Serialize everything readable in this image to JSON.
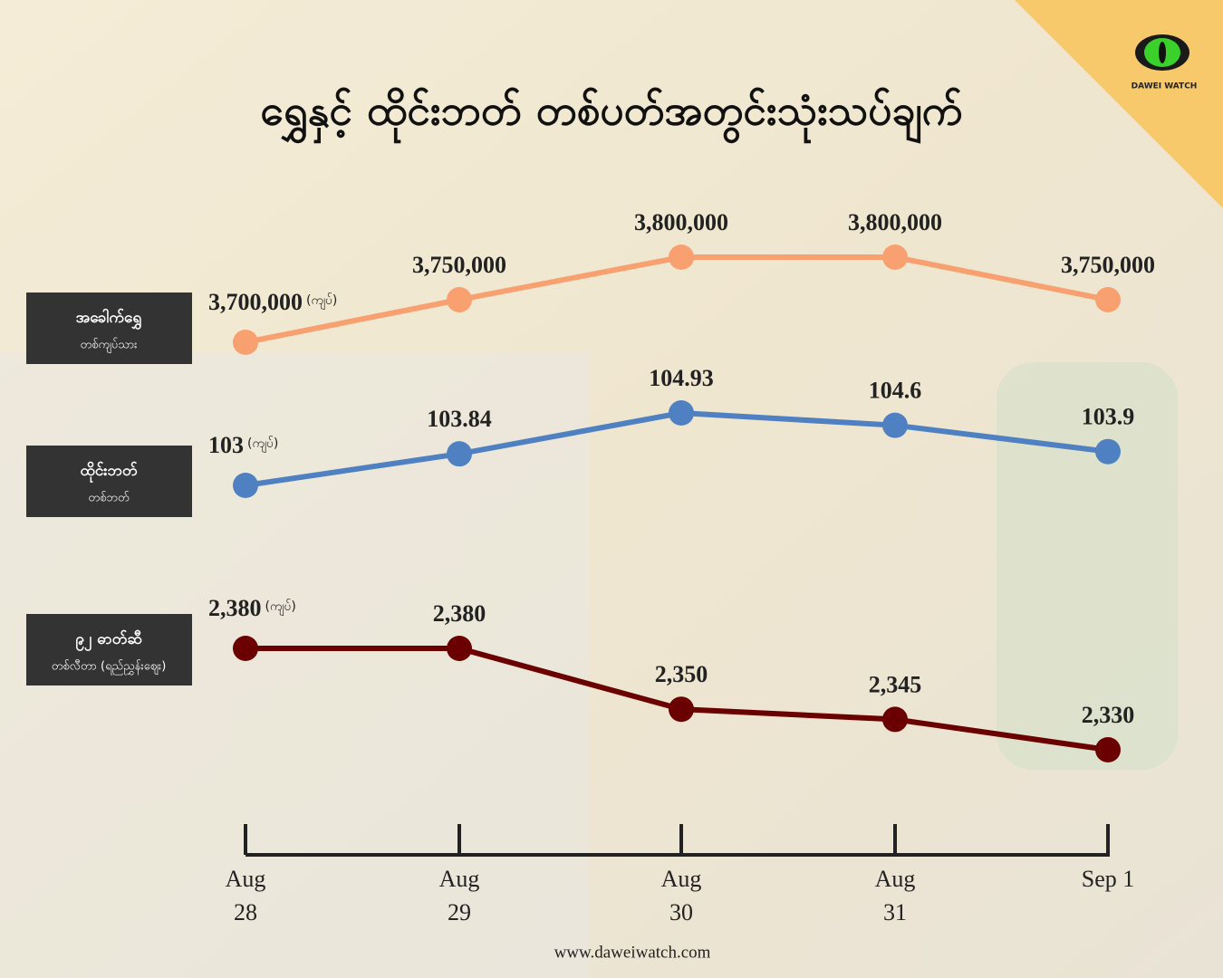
{
  "chart_data": {
    "type": "line",
    "title": "ရွှေနှင့် ထိုင်းဘတ် တစ်ပတ်အတွင်းသုံးသပ်ချက်",
    "categories": [
      "Aug 28",
      "Aug 29",
      "Aug 30",
      "Aug 31",
      "Sep 1"
    ],
    "series": [
      {
        "name": "အခေါက်ရွှေ",
        "unit": "တစ်ကျပ်သား",
        "note": "(ကျပ်)",
        "color": "#f9a070",
        "values": [
          3700000,
          3750000,
          3800000,
          3800000,
          3750000
        ],
        "value_labels": [
          "3,700,000",
          "3,750,000",
          "3,800,000",
          "3,800,000",
          "3,750,000"
        ],
        "ylim": [
          3700000,
          3800000
        ]
      },
      {
        "name": "ထိုင်းဘတ်",
        "unit": "တစ်ဘတ်",
        "note": "(ကျပ်)",
        "color": "#4f81c2",
        "values": [
          103,
          103.84,
          104.93,
          104.6,
          103.9
        ],
        "ylim": [
          103,
          104.93
        ]
      },
      {
        "name": "၉၂ ဓာတ်ဆီ",
        "unit": "တစ်လီတာ (ရည်ညွှန်းဈေး)",
        "note": "(ကျပ်)",
        "color": "#6b0000",
        "values": [
          2380,
          2380,
          2350,
          2345,
          2330
        ],
        "value_labels": [
          "2,380",
          "2,380",
          "2,350",
          "2,345",
          "2,330"
        ],
        "ylim": [
          2330,
          2380
        ]
      }
    ],
    "logo": "DAWEI WATCH",
    "footer": "www.daweiwatch.com"
  }
}
